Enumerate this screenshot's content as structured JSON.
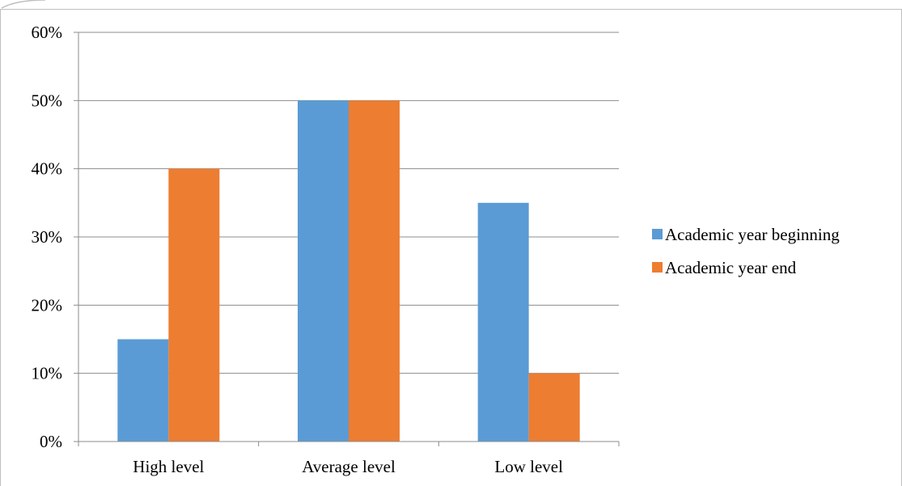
{
  "chart_data": {
    "type": "bar",
    "categories": [
      "High level",
      "Average level",
      "Low level"
    ],
    "series": [
      {
        "name": "Academic year beginning",
        "values": [
          15,
          50,
          35
        ],
        "color": "#5B9BD5"
      },
      {
        "name": "Academic year end",
        "values": [
          40,
          50,
          10
        ],
        "color": "#ED7D31"
      }
    ],
    "y_ticks": [
      "0%",
      "10%",
      "20%",
      "30%",
      "40%",
      "50%",
      "60%"
    ],
    "ylim": [
      0,
      60
    ],
    "grid": true,
    "legend_position": "right",
    "title": "",
    "xlabel": "",
    "ylabel": ""
  }
}
